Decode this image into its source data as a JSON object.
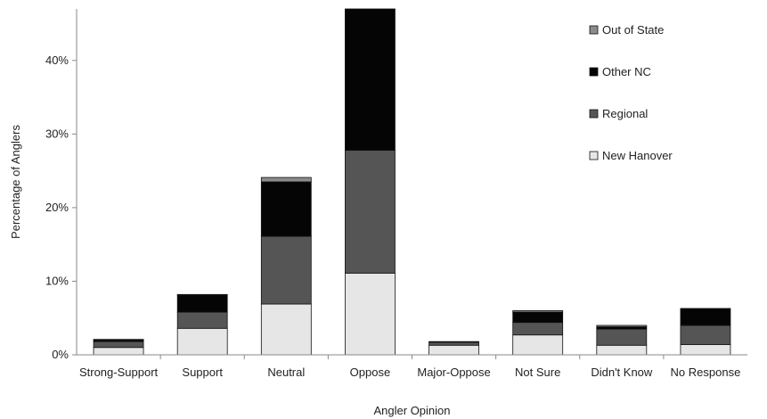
{
  "chart_data": {
    "type": "bar",
    "stacked": true,
    "title": "",
    "xlabel": "Angler Opinion",
    "ylabel": "Percentage of Anglers",
    "ylim": [
      0,
      47
    ],
    "yticks": [
      0,
      10,
      20,
      30,
      40
    ],
    "ytick_labels": [
      "0%",
      "10%",
      "20%",
      "30%",
      "40%"
    ],
    "grid": false,
    "legend_position": "top-right",
    "categories": [
      "Strong-Support",
      "Support",
      "Neutral",
      "Oppose",
      "Major-Oppose",
      "Not Sure",
      "Didn't Know",
      "No Response"
    ],
    "series": [
      {
        "name": "New Hanover",
        "color": "#e6e6e6",
        "values": [
          1.0,
          3.6,
          6.9,
          11.1,
          1.3,
          2.7,
          1.3,
          1.4
        ]
      },
      {
        "name": "Regional",
        "color": "#555555",
        "values": [
          0.8,
          2.2,
          9.2,
          16.7,
          0.4,
          1.7,
          2.2,
          2.6
        ]
      },
      {
        "name": "Other NC",
        "color": "#050505",
        "values": [
          0.2,
          2.3,
          7.4,
          19.4,
          0.1,
          1.4,
          0.3,
          2.3
        ]
      },
      {
        "name": "Out of State",
        "color": "#8c8c8c",
        "values": [
          0.1,
          0.1,
          0.6,
          0.0,
          0.0,
          0.2,
          0.2,
          0.0
        ]
      }
    ],
    "legend_order": [
      "Out of State",
      "Other NC",
      "Regional",
      "New Hanover"
    ]
  }
}
